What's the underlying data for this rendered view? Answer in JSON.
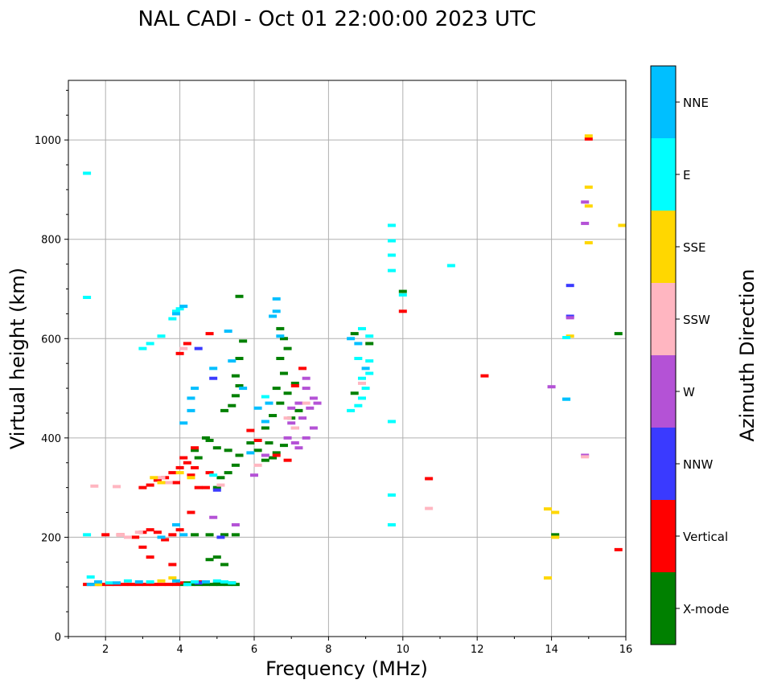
{
  "chart_data": {
    "type": "scatter",
    "title": "NAL CADI - Oct 01 22:00:00 2023 UTC",
    "xlabel": "Frequency (MHz)",
    "ylabel": "Virtual height (km)",
    "xlim": [
      1,
      16
    ],
    "ylim": [
      0,
      1120
    ],
    "xticks": [
      2,
      4,
      6,
      8,
      10,
      12,
      14,
      16
    ],
    "yticks": [
      0,
      200,
      400,
      600,
      800,
      1000
    ],
    "grid": true,
    "colorbar": {
      "label": "Azimuth Direction",
      "categories": [
        {
          "name": "X-mode",
          "color": "#008000"
        },
        {
          "name": "Vertical",
          "color": "#ff0000"
        },
        {
          "name": "NNW",
          "color": "#3a3aff"
        },
        {
          "name": "W",
          "color": "#b452d6"
        },
        {
          "name": "SSW",
          "color": "#ffb6c1"
        },
        {
          "name": "SSE",
          "color": "#ffd700"
        },
        {
          "name": "E",
          "color": "#00ffff"
        },
        {
          "name": "NNE",
          "color": "#00bfff"
        }
      ]
    },
    "series": [
      {
        "name": "X-mode",
        "points": [
          [
            4.1,
            105
          ],
          [
            4.3,
            105
          ],
          [
            4.5,
            105
          ],
          [
            4.7,
            105
          ],
          [
            4.9,
            105
          ],
          [
            5.1,
            105
          ],
          [
            5.3,
            105
          ],
          [
            5.5,
            105
          ],
          [
            4.2,
            108
          ],
          [
            4.6,
            108
          ],
          [
            5.0,
            108
          ],
          [
            5.4,
            108
          ],
          [
            4.4,
            205
          ],
          [
            4.8,
            205
          ],
          [
            5.2,
            205
          ],
          [
            5.5,
            205
          ],
          [
            5.0,
            160
          ],
          [
            5.2,
            145
          ],
          [
            4.8,
            155
          ],
          [
            5.0,
            300
          ],
          [
            5.1,
            320
          ],
          [
            5.3,
            330
          ],
          [
            5.5,
            345
          ],
          [
            5.6,
            365
          ],
          [
            5.3,
            375
          ],
          [
            5.0,
            380
          ],
          [
            4.8,
            395
          ],
          [
            4.4,
            375
          ],
          [
            4.5,
            360
          ],
          [
            4.7,
            400
          ],
          [
            5.2,
            455
          ],
          [
            5.4,
            465
          ],
          [
            5.5,
            485
          ],
          [
            5.6,
            505
          ],
          [
            5.5,
            525
          ],
          [
            5.6,
            560
          ],
          [
            5.7,
            595
          ],
          [
            5.6,
            685
          ],
          [
            5.9,
            390
          ],
          [
            6.1,
            375
          ],
          [
            6.3,
            355
          ],
          [
            6.5,
            360
          ],
          [
            6.6,
            370
          ],
          [
            6.8,
            385
          ],
          [
            6.3,
            420
          ],
          [
            6.5,
            445
          ],
          [
            6.7,
            470
          ],
          [
            6.9,
            490
          ],
          [
            7.1,
            510
          ],
          [
            6.6,
            500
          ],
          [
            6.8,
            530
          ],
          [
            6.7,
            560
          ],
          [
            6.8,
            600
          ],
          [
            6.7,
            620
          ],
          [
            6.9,
            580
          ],
          [
            6.4,
            390
          ],
          [
            7.0,
            440
          ],
          [
            7.2,
            455
          ],
          [
            8.7,
            490
          ],
          [
            8.7,
            610
          ],
          [
            9.1,
            590
          ],
          [
            10.0,
            695
          ],
          [
            14.1,
            205
          ],
          [
            15.8,
            610
          ]
        ]
      },
      {
        "name": "Vertical",
        "points": [
          [
            1.5,
            105
          ],
          [
            1.7,
            105
          ],
          [
            1.9,
            105
          ],
          [
            2.1,
            105
          ],
          [
            2.3,
            105
          ],
          [
            2.5,
            105
          ],
          [
            2.7,
            105
          ],
          [
            2.9,
            105
          ],
          [
            3.1,
            105
          ],
          [
            3.3,
            105
          ],
          [
            3.5,
            105
          ],
          [
            3.7,
            105
          ],
          [
            3.9,
            105
          ],
          [
            4.0,
            108
          ],
          [
            2.0,
            205
          ],
          [
            2.4,
            205
          ],
          [
            2.8,
            200
          ],
          [
            3.0,
            210
          ],
          [
            3.2,
            215
          ],
          [
            3.4,
            210
          ],
          [
            3.6,
            195
          ],
          [
            3.8,
            205
          ],
          [
            4.0,
            215
          ],
          [
            3.0,
            180
          ],
          [
            3.2,
            160
          ],
          [
            3.0,
            300
          ],
          [
            3.2,
            305
          ],
          [
            3.4,
            315
          ],
          [
            3.6,
            320
          ],
          [
            3.8,
            330
          ],
          [
            4.0,
            340
          ],
          [
            4.2,
            350
          ],
          [
            4.4,
            340
          ],
          [
            4.1,
            360
          ],
          [
            4.3,
            325
          ],
          [
            3.9,
            310
          ],
          [
            4.5,
            300
          ],
          [
            4.7,
            300
          ],
          [
            4.4,
            380
          ],
          [
            4.8,
            330
          ],
          [
            4.0,
            570
          ],
          [
            4.2,
            590
          ],
          [
            4.8,
            610
          ],
          [
            5.9,
            415
          ],
          [
            6.1,
            395
          ],
          [
            6.6,
            365
          ],
          [
            6.9,
            355
          ],
          [
            7.3,
            540
          ],
          [
            7.1,
            505
          ],
          [
            10.0,
            655
          ],
          [
            10.7,
            318
          ],
          [
            12.2,
            525
          ],
          [
            15.0,
            1002
          ],
          [
            15.8,
            175
          ],
          [
            4.3,
            250
          ],
          [
            3.8,
            145
          ],
          [
            4.6,
            110
          ]
        ]
      },
      {
        "name": "NNW",
        "points": [
          [
            4.5,
            108
          ],
          [
            5.1,
            200
          ],
          [
            4.5,
            580
          ],
          [
            4.9,
            520
          ],
          [
            5.0,
            295
          ],
          [
            14.5,
            707
          ],
          [
            14.5,
            645
          ]
        ]
      },
      {
        "name": "W",
        "points": [
          [
            6.9,
            400
          ],
          [
            7.1,
            420
          ],
          [
            7.3,
            440
          ],
          [
            7.5,
            460
          ],
          [
            7.7,
            470
          ],
          [
            7.0,
            430
          ],
          [
            7.2,
            380
          ],
          [
            7.4,
            400
          ],
          [
            7.6,
            420
          ],
          [
            7.6,
            480
          ],
          [
            7.4,
            500
          ],
          [
            7.2,
            470
          ],
          [
            7.0,
            460
          ],
          [
            7.4,
            520
          ],
          [
            7.1,
            390
          ],
          [
            6.3,
            365
          ],
          [
            6.0,
            325
          ],
          [
            4.9,
            240
          ],
          [
            5.5,
            225
          ],
          [
            14.0,
            503
          ],
          [
            14.9,
            875
          ],
          [
            14.9,
            832
          ],
          [
            14.9,
            365
          ],
          [
            14.5,
            642
          ]
        ]
      },
      {
        "name": "SSW",
        "points": [
          [
            1.7,
            303
          ],
          [
            2.3,
            302
          ],
          [
            2.4,
            205
          ],
          [
            2.6,
            200
          ],
          [
            2.9,
            210
          ],
          [
            3.5,
            320
          ],
          [
            3.7,
            310
          ],
          [
            4.1,
            580
          ],
          [
            5.1,
            305
          ],
          [
            6.1,
            345
          ],
          [
            6.9,
            440
          ],
          [
            7.1,
            420
          ],
          [
            7.4,
            470
          ],
          [
            8.9,
            510
          ],
          [
            10.7,
            258
          ],
          [
            14.9,
            362
          ]
        ]
      },
      {
        "name": "SSE",
        "points": [
          [
            1.8,
            105
          ],
          [
            3.3,
            320
          ],
          [
            3.5,
            310
          ],
          [
            4.0,
            330
          ],
          [
            4.3,
            320
          ],
          [
            3.5,
            112
          ],
          [
            3.8,
            118
          ],
          [
            13.9,
            257
          ],
          [
            14.1,
            250
          ],
          [
            14.1,
            200
          ],
          [
            13.9,
            118
          ],
          [
            14.5,
            605
          ],
          [
            15.0,
            1008
          ],
          [
            15.0,
            905
          ],
          [
            15.0,
            867
          ],
          [
            15.0,
            793
          ],
          [
            15.9,
            828
          ]
        ]
      },
      {
        "name": "E",
        "points": [
          [
            1.5,
            933
          ],
          [
            1.5,
            683
          ],
          [
            1.5,
            205
          ],
          [
            1.6,
            120
          ],
          [
            3.2,
            590
          ],
          [
            3.8,
            640
          ],
          [
            3.9,
            655
          ],
          [
            4.0,
            660
          ],
          [
            3.5,
            605
          ],
          [
            3.0,
            580
          ],
          [
            2.1,
            108
          ],
          [
            2.6,
            112
          ],
          [
            3.2,
            110
          ],
          [
            4.2,
            105
          ],
          [
            4.4,
            110
          ],
          [
            5.0,
            112
          ],
          [
            5.2,
            110
          ],
          [
            5.4,
            108
          ],
          [
            8.6,
            455
          ],
          [
            8.8,
            465
          ],
          [
            8.9,
            480
          ],
          [
            9.0,
            500
          ],
          [
            8.9,
            520
          ],
          [
            9.1,
            530
          ],
          [
            8.8,
            560
          ],
          [
            9.1,
            605
          ],
          [
            9.1,
            555
          ],
          [
            8.9,
            620
          ],
          [
            9.7,
            433
          ],
          [
            9.7,
            285
          ],
          [
            9.7,
            225
          ],
          [
            9.7,
            737
          ],
          [
            9.7,
            768
          ],
          [
            9.7,
            797
          ],
          [
            9.7,
            828
          ],
          [
            10.0,
            688
          ],
          [
            11.3,
            747
          ],
          [
            14.4,
            602
          ],
          [
            14.4,
            478
          ],
          [
            4.9,
            325
          ],
          [
            6.3,
            483
          ]
        ]
      },
      {
        "name": "NNE",
        "points": [
          [
            1.6,
            105
          ],
          [
            1.8,
            110
          ],
          [
            3.9,
            650
          ],
          [
            4.1,
            665
          ],
          [
            4.3,
            480
          ],
          [
            4.4,
            500
          ],
          [
            4.1,
            430
          ],
          [
            4.3,
            455
          ],
          [
            4.9,
            540
          ],
          [
            5.3,
            615
          ],
          [
            5.4,
            555
          ],
          [
            5.7,
            500
          ],
          [
            6.1,
            460
          ],
          [
            6.4,
            470
          ],
          [
            6.6,
            680
          ],
          [
            6.6,
            655
          ],
          [
            6.5,
            645
          ],
          [
            6.7,
            605
          ],
          [
            5.9,
            370
          ],
          [
            6.3,
            433
          ],
          [
            8.6,
            600
          ],
          [
            8.8,
            590
          ],
          [
            9.0,
            540
          ],
          [
            14.4,
            478
          ],
          [
            3.5,
            200
          ],
          [
            3.9,
            225
          ],
          [
            4.1,
            205
          ],
          [
            2.3,
            108
          ],
          [
            2.9,
            110
          ],
          [
            3.9,
            112
          ],
          [
            4.7,
            110
          ]
        ]
      }
    ]
  }
}
